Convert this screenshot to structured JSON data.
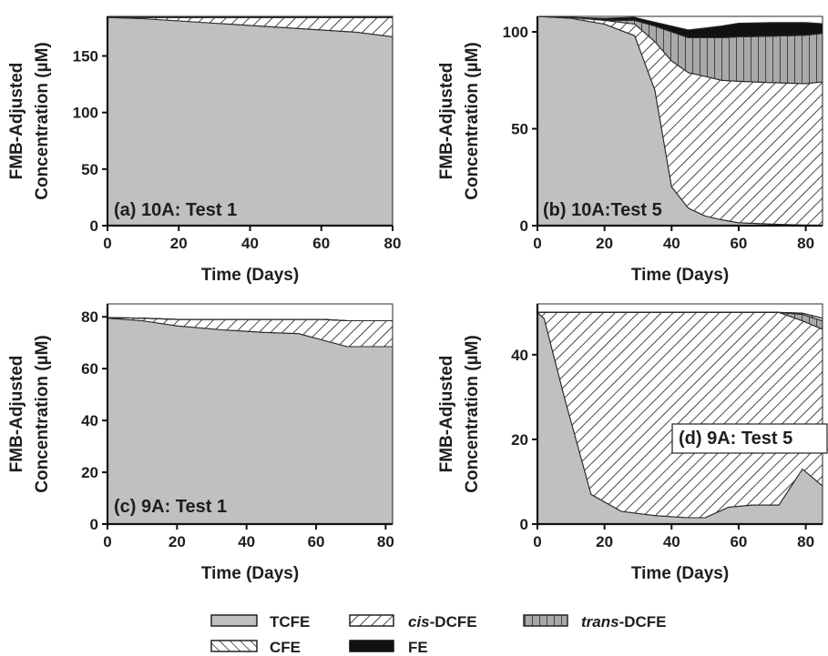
{
  "chart_data": [
    {
      "type": "area",
      "panel_label": "(a) 10A: Test 1",
      "xlabel": "Time (Days)",
      "ylabel": [
        "FMB-Adjusted",
        "Concentration (µM)"
      ],
      "xlim": [
        0,
        80
      ],
      "ylim": [
        0,
        185
      ],
      "xticks": [
        0,
        20,
        40,
        60,
        80
      ],
      "yticks": [
        0,
        50,
        100,
        150
      ],
      "x": [
        0,
        10,
        20,
        30,
        40,
        50,
        60,
        70,
        80
      ],
      "series": [
        {
          "name": "TCFE",
          "values": [
            184,
            183,
            181,
            179,
            177,
            175,
            173,
            171,
            167
          ]
        },
        {
          "name": "cis-DCFE",
          "values": [
            0,
            1,
            3,
            5,
            7,
            9,
            11,
            13,
            17
          ]
        },
        {
          "name": "trans-DCFE",
          "values": [
            0,
            0,
            0,
            0,
            0,
            0,
            0,
            0,
            0
          ]
        },
        {
          "name": "CFE",
          "values": [
            0,
            0,
            0,
            0,
            0,
            0,
            0,
            0,
            0
          ]
        },
        {
          "name": "FE",
          "values": [
            0,
            0,
            0,
            0,
            0,
            0,
            0,
            0,
            0
          ]
        }
      ]
    },
    {
      "type": "area",
      "panel_label": "(b) 10A:Test 5",
      "xlabel": "Time (Days)",
      "ylabel": [
        "FMB-Adjusted",
        "Concentration (µM)"
      ],
      "xlim": [
        0,
        85
      ],
      "ylim": [
        0,
        108
      ],
      "xticks": [
        0,
        20,
        40,
        60,
        80
      ],
      "yticks": [
        0,
        50,
        100
      ],
      "x": [
        0,
        10,
        20,
        29,
        35,
        40,
        45,
        50,
        55,
        60,
        70,
        80,
        85
      ],
      "series": [
        {
          "name": "TCFE",
          "values": [
            108,
            107,
            104,
            98,
            70,
            20,
            9,
            5,
            3,
            1.5,
            0.8,
            0.3,
            0.2
          ]
        },
        {
          "name": "cis-DCFE",
          "values": [
            0,
            0.5,
            2,
            6,
            25,
            65,
            70,
            72,
            72,
            73,
            73,
            73,
            74
          ]
        },
        {
          "name": "trans-DCFE",
          "values": [
            0,
            0,
            0,
            2,
            8,
            15,
            18,
            20,
            22,
            23,
            24,
            25,
            25
          ]
        },
        {
          "name": "CFE",
          "values": [
            0,
            0,
            0,
            0,
            0,
            0,
            0,
            0,
            0,
            0,
            0,
            0,
            0
          ]
        },
        {
          "name": "FE",
          "values": [
            0,
            0,
            1,
            1.5,
            2,
            3,
            4,
            5,
            6,
            7,
            7,
            6.5,
            5
          ]
        }
      ]
    },
    {
      "type": "area",
      "panel_label": "(c) 9A: Test 1",
      "xlabel": "Time (Days)",
      "ylabel": [
        "FMB-Adjusted",
        "Concentration (µM)"
      ],
      "xlim": [
        0,
        82
      ],
      "ylim": [
        0,
        85
      ],
      "xticks": [
        0,
        20,
        40,
        60,
        80
      ],
      "yticks": [
        0,
        20,
        40,
        60,
        80
      ],
      "x": [
        0,
        10,
        20,
        33,
        45,
        55,
        62,
        69,
        82
      ],
      "series": [
        {
          "name": "TCFE",
          "values": [
            79.5,
            78.5,
            76.5,
            75,
            74,
            73.5,
            71,
            68.5,
            68.5
          ]
        },
        {
          "name": "cis-DCFE",
          "values": [
            0.2,
            1,
            2.5,
            4,
            5,
            5.5,
            8,
            10,
            10
          ]
        },
        {
          "name": "trans-DCFE",
          "values": [
            0,
            0,
            0,
            0,
            0,
            0,
            0,
            0,
            0
          ]
        },
        {
          "name": "CFE",
          "values": [
            0,
            0,
            0,
            0,
            0,
            0,
            0,
            0,
            0
          ]
        },
        {
          "name": "FE",
          "values": [
            0,
            0,
            0,
            0,
            0,
            0,
            0,
            0,
            0
          ]
        }
      ]
    },
    {
      "type": "area",
      "panel_label": "(d) 9A: Test 5",
      "xlabel": "Time (Days)",
      "ylabel": [
        "FMB-Adjusted",
        "Concentration (µM)"
      ],
      "xlim": [
        0,
        85
      ],
      "ylim": [
        0,
        52
      ],
      "xticks": [
        0,
        20,
        40,
        60,
        80
      ],
      "yticks": [
        0,
        20,
        40
      ],
      "x": [
        0,
        2,
        8,
        16,
        25,
        35,
        45,
        50,
        57,
        64,
        72,
        79,
        85
      ],
      "series": [
        {
          "name": "TCFE",
          "values": [
            50,
            48.5,
            30,
            7,
            3,
            2,
            1.5,
            1.5,
            4,
            4.5,
            4.5,
            13,
            9
          ]
        },
        {
          "name": "cis-DCFE",
          "values": [
            0,
            1.5,
            20,
            43,
            47,
            48,
            48.5,
            48.5,
            46,
            45.5,
            45.5,
            35,
            37
          ]
        },
        {
          "name": "trans-DCFE",
          "values": [
            0,
            0,
            0,
            0,
            0,
            0,
            0,
            0,
            0,
            0,
            0,
            1.5,
            2
          ]
        },
        {
          "name": "CFE",
          "values": [
            0,
            0,
            0,
            0,
            0,
            0,
            0,
            0,
            0,
            0,
            0,
            0.3,
            0.6
          ]
        },
        {
          "name": "FE",
          "values": [
            0,
            0,
            0,
            0,
            0,
            0,
            0,
            0,
            0,
            0,
            0,
            0,
            0
          ]
        }
      ]
    }
  ],
  "legend": [
    {
      "label": "TCFE",
      "italic_prefix": "",
      "suffix": "TCFE",
      "pattern": "TCFE"
    },
    {
      "label": "cis-DCFE",
      "italic_prefix": "cis",
      "suffix": "-DCFE",
      "pattern": "cis-DCFE"
    },
    {
      "label": "trans-DCFE",
      "italic_prefix": "trans",
      "suffix": "-DCFE",
      "pattern": "trans-DCFE"
    },
    {
      "label": "CFE",
      "italic_prefix": "",
      "suffix": "CFE",
      "pattern": "CFE"
    },
    {
      "label": "FE",
      "italic_prefix": "",
      "suffix": "FE",
      "pattern": "FE"
    }
  ],
  "colors": {
    "TCFE": "#c0c0c2",
    "trans_DCFE": "#a9a9ab",
    "FE": "#111111",
    "axis": "#222222",
    "text": "#1e1e1e"
  }
}
